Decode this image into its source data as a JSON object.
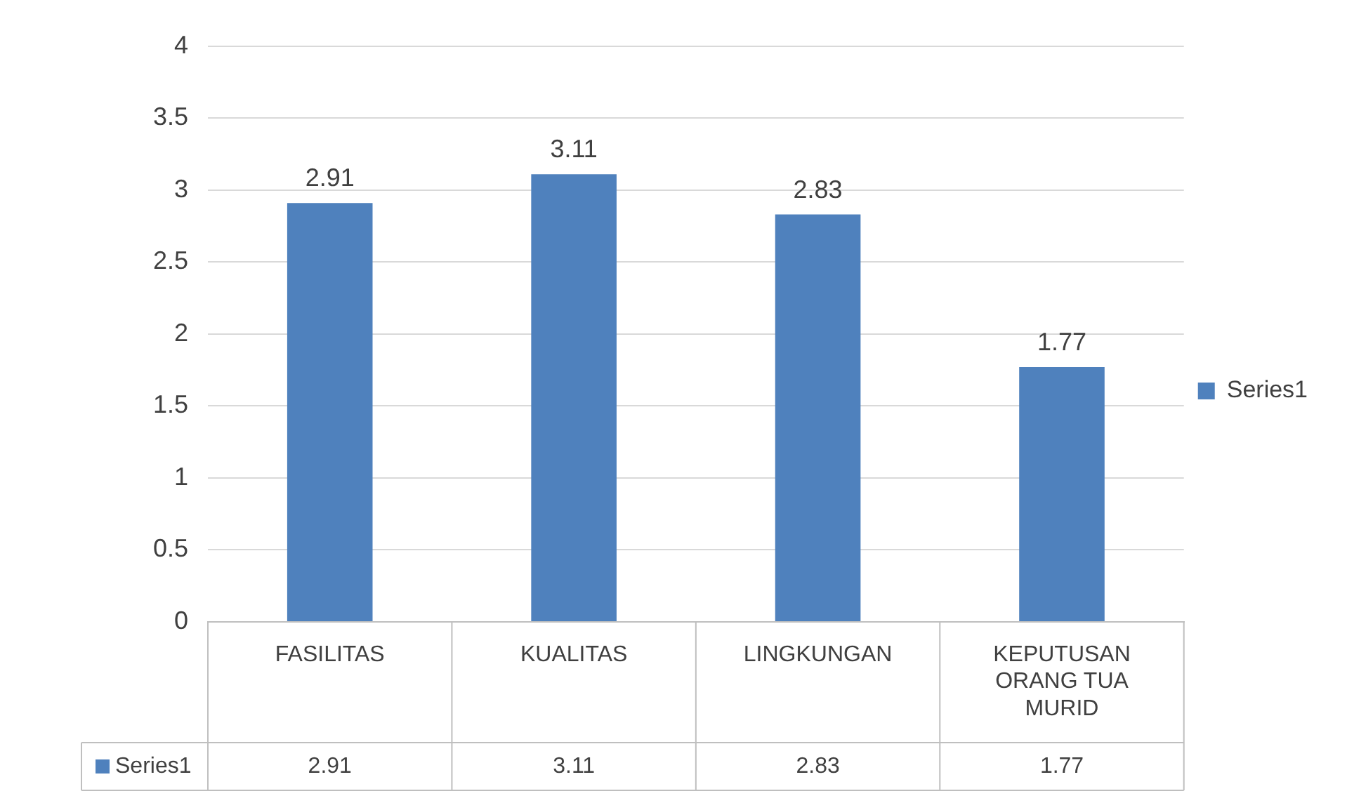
{
  "chart_data": {
    "type": "bar",
    "categories": [
      "FASILITAS",
      "KUALITAS",
      "LINGKUNGAN",
      "KEPUTUSAN ORANG TUA MURID"
    ],
    "series": [
      {
        "name": "Series1",
        "color": "#4f81bd",
        "values": [
          2.91,
          3.11,
          2.83,
          1.77
        ]
      }
    ],
    "annotations": [
      {
        "text": "2.91",
        "x": "FASILITAS",
        "y": 2.91
      },
      {
        "text": "3.11",
        "x": "KUALITAS",
        "y": 3.11
      },
      {
        "text": "2.83",
        "x": "LINGKUNGAN",
        "y": 2.83
      },
      {
        "text": "1.77",
        "x": "KEPUTUSAN ORANG TUA MURID",
        "y": 1.77
      }
    ],
    "ylim": [
      0,
      4
    ],
    "yticks": [
      0,
      0.5,
      1,
      1.5,
      2,
      2.5,
      3,
      3.5,
      4
    ],
    "grid": "y",
    "legend": "right",
    "data_labels": true
  }
}
